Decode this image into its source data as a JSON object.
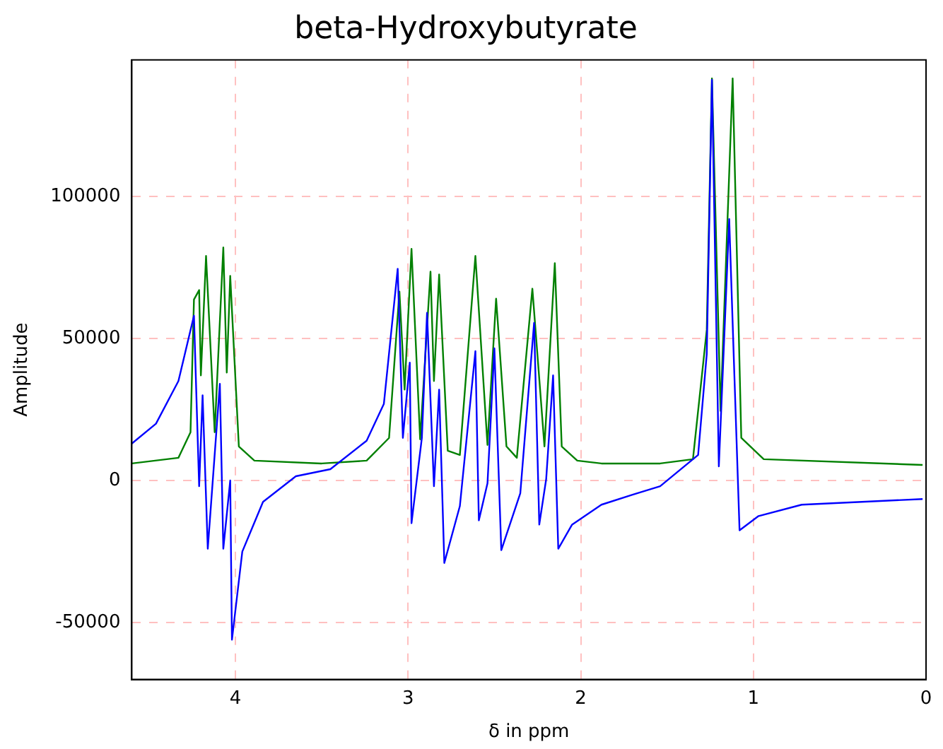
{
  "chart_data": {
    "type": "line",
    "title": "beta-Hydroxybutyrate",
    "xlabel": "δ in ppm",
    "ylabel": "Amplitude",
    "xlim": [
      4.6,
      0
    ],
    "xticks": [
      4,
      3,
      2,
      1,
      0
    ],
    "ylim": [
      -70000,
      148000
    ],
    "yticks": [
      -50000,
      0,
      50000,
      100000
    ],
    "grid": true,
    "legend": false,
    "marker": "none",
    "line_style": "solid",
    "series": [
      {
        "color": "#0000ff",
        "x": [
          4.6,
          4.46,
          4.33,
          4.24,
          4.21,
          4.19,
          4.16,
          4.09,
          4.07,
          4.03,
          4.02,
          3.96,
          3.84,
          3.65,
          3.45,
          3.24,
          3.14,
          3.06,
          3.03,
          2.99,
          2.98,
          2.92,
          2.89,
          2.85,
          2.82,
          2.79,
          2.7,
          2.61,
          2.59,
          2.54,
          2.5,
          2.46,
          2.35,
          2.27,
          2.24,
          2.2,
          2.16,
          2.13,
          2.05,
          1.88,
          1.7,
          1.54,
          1.32,
          1.27,
          1.24,
          1.2,
          1.14,
          1.11,
          1.08,
          0.97,
          0.72,
          0.02
        ],
        "values": [
          13000,
          20000,
          35000,
          58000,
          -2000,
          30000,
          -24000,
          34000,
          -24000,
          0,
          -56000,
          -25000,
          -7500,
          1500,
          4000,
          14000,
          27000,
          74500,
          15000,
          41500,
          -15000,
          15000,
          59000,
          -2000,
          32000,
          -29000,
          -9000,
          45500,
          -14000,
          -1000,
          46500,
          -24500,
          -4500,
          55500,
          -15500,
          500,
          37000,
          -24000,
          -15500,
          -8500,
          -5000,
          -2000,
          9000,
          44500,
          141000,
          5000,
          92000,
          37000,
          -17500,
          -12500,
          -8500,
          -6500
        ]
      },
      {
        "color": "#008000",
        "x": [
          4.6,
          4.33,
          4.26,
          4.24,
          4.21,
          4.2,
          4.17,
          4.12,
          4.07,
          4.05,
          4.03,
          3.98,
          3.89,
          3.5,
          3.24,
          3.11,
          3.05,
          3.02,
          2.98,
          2.93,
          2.87,
          2.85,
          2.82,
          2.77,
          2.7,
          2.61,
          2.54,
          2.49,
          2.43,
          2.37,
          2.28,
          2.21,
          2.15,
          2.11,
          2.02,
          1.88,
          1.54,
          1.35,
          1.27,
          1.24,
          1.19,
          1.12,
          1.07,
          0.94,
          0.02
        ],
        "values": [
          6000,
          8000,
          17000,
          63700,
          67000,
          37000,
          79000,
          17000,
          82000,
          38000,
          72000,
          12000,
          7000,
          6000,
          7000,
          15000,
          66500,
          32000,
          81500,
          14500,
          73500,
          35000,
          72500,
          10500,
          9000,
          79000,
          12500,
          64000,
          12000,
          8000,
          67500,
          12000,
          76500,
          12000,
          7000,
          6000,
          6000,
          7500,
          53000,
          141500,
          24500,
          141500,
          15000,
          7500,
          5500
        ]
      }
    ]
  }
}
